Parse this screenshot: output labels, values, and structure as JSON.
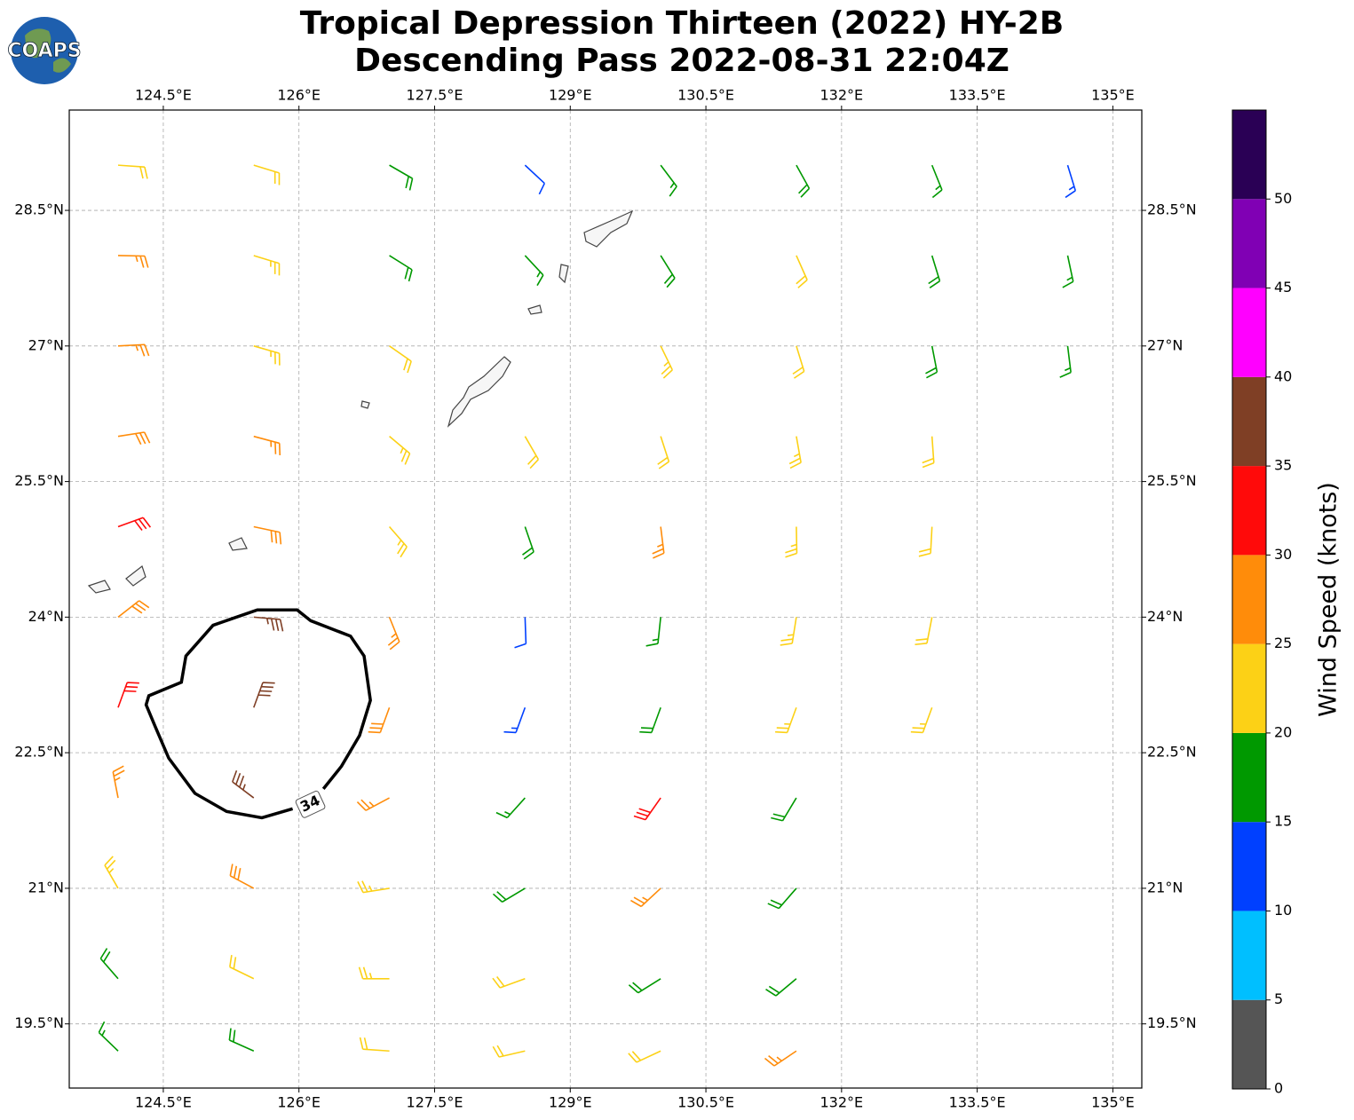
{
  "map": {
    "type": "barbs",
    "title": "Tropical Depression Thirteen (2022) HY-2B",
    "subtitle": "Descending Pass 2022-08-31 22:04Z",
    "logo": "COAPS",
    "xlim": [
      123.46,
      135.32
    ],
    "ylim": [
      18.79,
      29.61
    ],
    "grid": true,
    "xticks": [
      {
        "value": 124.5,
        "label": "124.5°E"
      },
      {
        "value": 126,
        "label": "126°E"
      },
      {
        "value": 127.5,
        "label": "127.5°E"
      },
      {
        "value": 129,
        "label": "129°E"
      },
      {
        "value": 130.5,
        "label": "130.5°E"
      },
      {
        "value": 132,
        "label": "132°E"
      },
      {
        "value": 133.5,
        "label": "133.5°E"
      },
      {
        "value": 135,
        "label": "135°E"
      }
    ],
    "yticks": [
      {
        "value": 28.5,
        "label": "28.5°N"
      },
      {
        "value": 27,
        "label": "27°N"
      },
      {
        "value": 25.5,
        "label": "25.5°N"
      },
      {
        "value": 24,
        "label": "24°N"
      },
      {
        "value": 22.5,
        "label": "22.5°N"
      },
      {
        "value": 21,
        "label": "21°N"
      },
      {
        "value": 19.5,
        "label": "19.5°N"
      }
    ],
    "colorbar": {
      "label": "Wind Speed (knots)",
      "bins": [
        0,
        5,
        10,
        15,
        20,
        25,
        30,
        35,
        40,
        45,
        50,
        55
      ],
      "colors": [
        "#555555",
        "#00bfff",
        "#0040ff",
        "#009900",
        "#fcd116",
        "#ff8c0a",
        "#ff0a0a",
        "#7f3f25",
        "#ff00ff",
        "#8000b4",
        "#2a0055"
      ],
      "ticks": [
        0,
        5,
        10,
        15,
        20,
        25,
        30,
        35,
        40,
        45,
        50
      ]
    },
    "barbs": {
      "lon": [
        124,
        125.5,
        127,
        128.5,
        130,
        131.5,
        133,
        134.5,
        124,
        125.5,
        127,
        128.5,
        130,
        131.5,
        133,
        134.5,
        124,
        125.5,
        127,
        130,
        131.5,
        133,
        134.5,
        124,
        125.5,
        127,
        128.5,
        130,
        131.5,
        133,
        124,
        125.5,
        127,
        128.5,
        130,
        131.5,
        133,
        124,
        125.5,
        127,
        128.5,
        130,
        131.5,
        133,
        124,
        125.5,
        127,
        128.5,
        130,
        131.5,
        133,
        124,
        125.5,
        127,
        128.5,
        130,
        131.5,
        124,
        125.5,
        127,
        128.5,
        130,
        131.5,
        124,
        125.5,
        127,
        128.5,
        130,
        131.5,
        124,
        125.5,
        127,
        128.5,
        130,
        131.5
      ],
      "lat": [
        29,
        29,
        29,
        29,
        29,
        29,
        29,
        29,
        28,
        28,
        28,
        28,
        28,
        28,
        28,
        28,
        27,
        27,
        27,
        27,
        27,
        27,
        27,
        26,
        26,
        26,
        26,
        26,
        26,
        26,
        25,
        25,
        25,
        25,
        25,
        25,
        25,
        24,
        24,
        24,
        24,
        24,
        24,
        24,
        23,
        23,
        23,
        23,
        23,
        23,
        23,
        22,
        22,
        22,
        22,
        22,
        22,
        21,
        21,
        21,
        21,
        21,
        21,
        20,
        20,
        20,
        20,
        20,
        20,
        19.2,
        19.2,
        19.2,
        19.2,
        19.2,
        19.2
      ],
      "speed": [
        22,
        22,
        18,
        12,
        17,
        18,
        17,
        13,
        27,
        24,
        18,
        16,
        18,
        21,
        19,
        17,
        27,
        24,
        22,
        23,
        22,
        18,
        17,
        28,
        27,
        23,
        21,
        22,
        23,
        21,
        31,
        28,
        24,
        19,
        26,
        24,
        22,
        28,
        35,
        26,
        12,
        17,
        24,
        22,
        31,
        38,
        29,
        13,
        18,
        23,
        23,
        27,
        36,
        27,
        16,
        31,
        19,
        23,
        28,
        24,
        18,
        27,
        19,
        18,
        22,
        23,
        21,
        19,
        18,
        17,
        18,
        22,
        21,
        22,
        27
      ],
      "direction": [
        94,
        107,
        120,
        133,
        143,
        151,
        158,
        163,
        91,
        107,
        122,
        137,
        148,
        156,
        163,
        168,
        87,
        106,
        125,
        154,
        163,
        169,
        173,
        81,
        105,
        130,
        150,
        162,
        170,
        176,
        70,
        102,
        139,
        161,
        173,
        179,
        183,
        52,
        95,
        158,
        178,
        186,
        189,
        191,
        20,
        20,
        200,
        200,
        200,
        200,
        200,
        349,
        307,
        242,
        222,
        215,
        211,
        330,
        298,
        261,
        239,
        227,
        221,
        319,
        296,
        270,
        250,
        238,
        230,
        314,
        294,
        274,
        257,
        245,
        236
      ]
    },
    "contour": {
      "level": 34,
      "lon": [
        125.93,
        125.59,
        125.2,
        124.85,
        124.56,
        124.41,
        124.31,
        124.34,
        124.7,
        124.75,
        125.05,
        125.54,
        125.98,
        126.13,
        126.57,
        126.72,
        126.79,
        126.67,
        126.47,
        126.27
      ],
      "lat": [
        21.88,
        21.78,
        21.85,
        22.05,
        22.44,
        22.79,
        23.03,
        23.13,
        23.28,
        23.57,
        23.91,
        24.08,
        24.08,
        23.96,
        23.79,
        23.57,
        23.08,
        22.69,
        22.35,
        22.1
      ]
    }
  }
}
